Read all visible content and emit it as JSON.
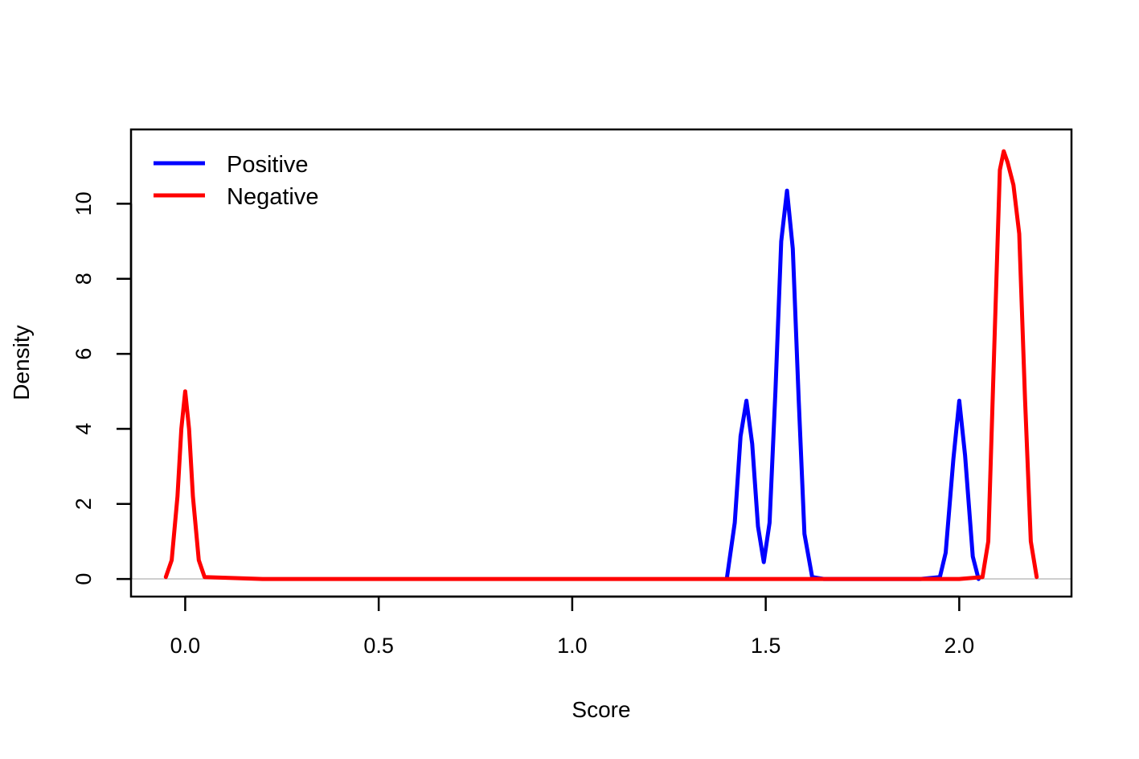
{
  "chart_data": {
    "type": "line",
    "title": "",
    "xlabel": "Score",
    "ylabel": "Density",
    "xlim": [
      -0.14,
      2.29
    ],
    "ylim": [
      -0.47,
      11.98
    ],
    "x_ticks": [
      0.0,
      0.5,
      1.0,
      1.5,
      2.0
    ],
    "x_tick_labels": [
      "0.0",
      "0.5",
      "1.0",
      "1.5",
      "2.0"
    ],
    "y_ticks": [
      0,
      2,
      4,
      6,
      8,
      10
    ],
    "y_tick_labels": [
      "0",
      "2",
      "4",
      "6",
      "8",
      "10"
    ],
    "grid": false,
    "zero_line": true,
    "legend": {
      "position": "top-left"
    },
    "series": [
      {
        "name": "Positive",
        "color": "#0000ff",
        "x": [
          1.4,
          1.42,
          1.435,
          1.45,
          1.465,
          1.48,
          1.495,
          1.51,
          1.525,
          1.54,
          1.555,
          1.57,
          1.585,
          1.6,
          1.62,
          1.65,
          1.7,
          1.8,
          1.9,
          1.95,
          1.965,
          1.985,
          2.0,
          2.015,
          2.035,
          2.05
        ],
        "y": [
          0.05,
          1.5,
          3.8,
          4.75,
          3.6,
          1.4,
          0.45,
          1.5,
          5.0,
          9.0,
          10.35,
          8.8,
          4.8,
          1.2,
          0.05,
          0.0,
          0.0,
          0.0,
          0.0,
          0.05,
          0.7,
          3.2,
          4.75,
          3.3,
          0.6,
          0.0
        ]
      },
      {
        "name": "Negative",
        "color": "#ff0000",
        "x": [
          -0.05,
          -0.035,
          -0.02,
          -0.01,
          0.0,
          0.01,
          0.02,
          0.035,
          0.05,
          0.2,
          0.5,
          1.0,
          1.5,
          2.0,
          2.06,
          2.075,
          2.09,
          2.105,
          2.115,
          2.125,
          2.14,
          2.155,
          2.17,
          2.185,
          2.2
        ],
        "y": [
          0.05,
          0.5,
          2.2,
          4.0,
          5.0,
          4.0,
          2.2,
          0.5,
          0.05,
          0.0,
          0.0,
          0.0,
          0.0,
          0.0,
          0.05,
          1.0,
          6.0,
          10.9,
          11.4,
          11.1,
          10.5,
          9.2,
          4.8,
          1.0,
          0.05
        ]
      }
    ]
  }
}
